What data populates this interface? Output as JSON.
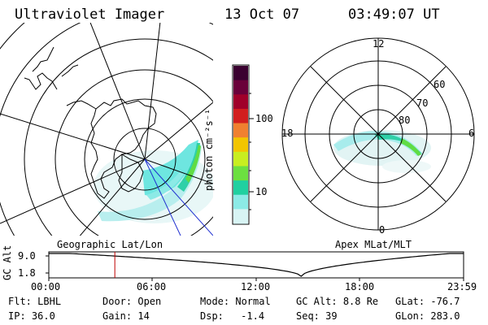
{
  "header": {
    "instrument": "Ultraviolet Imager",
    "date": "13 Oct 07",
    "time": "03:49:07 UT"
  },
  "maps": {
    "left_label": "Geographic Lat/Lon",
    "right_label": "Apex MLat/MLT",
    "mlt_labels": [
      "12",
      "18",
      "6",
      "0"
    ],
    "mlat_labels": [
      "60",
      "70",
      "80"
    ]
  },
  "colorbar": {
    "unit_label": "photon cm⁻²s⁻¹",
    "tick_labels": [
      "100",
      "10"
    ],
    "colors": [
      "#3a0030",
      "#6a003a",
      "#a0002a",
      "#d21e1e",
      "#f08030",
      "#f2c500",
      "#c8ee20",
      "#6ce040",
      "#20d0a0",
      "#8ceae6",
      "#d8f4f4"
    ]
  },
  "timeline": {
    "ylabel": "GC Alt",
    "y_ticks": [
      "9.0",
      "1.8"
    ],
    "x_ticks": [
      "00:00",
      "06:00",
      "12:00",
      "18:00",
      "23:59"
    ],
    "marker_time_hours": 3.82
  },
  "info": {
    "row1": [
      {
        "k": "Flt:",
        "v": "LBHL"
      },
      {
        "k": "Door:",
        "v": "Open"
      },
      {
        "k": "Mode:",
        "v": "Normal"
      },
      {
        "k": "GC Alt:",
        "v": "8.8 Re"
      },
      {
        "k": "GLat:",
        "v": "-76.7"
      }
    ],
    "row2": [
      {
        "k": "IP:",
        "v": "36.0"
      },
      {
        "k": "Gain:",
        "v": "14"
      },
      {
        "k": "Dsp:",
        "v": "-1.4"
      },
      {
        "k": "Seq:",
        "v": "39"
      },
      {
        "k": "GLon:",
        "v": "283.0"
      }
    ]
  }
}
